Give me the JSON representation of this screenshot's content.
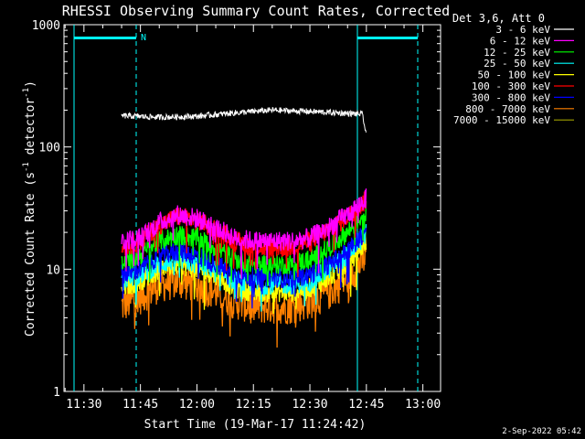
{
  "chart_data": {
    "type": "line",
    "title": "RHESSI Observing Summary Count Rates, Corrected",
    "xlabel": "Start Time (19-Mar-17 11:24:42)",
    "ylabel_main": "Corrected Count Rate (s",
    "ylabel_sup1": "-1",
    "ylabel_mid": " detector",
    "ylabel_sup2": "-1",
    "ylabel_end": ")",
    "yscale": "log",
    "ylim": [
      1,
      1000
    ],
    "xlim": [
      "11:24:42",
      "13:04:42"
    ],
    "x_ticks": [
      "11:30",
      "11:45",
      "12:00",
      "12:15",
      "12:30",
      "12:45",
      "13:00"
    ],
    "y_ticks": [
      "1",
      "10",
      "100",
      "1000"
    ],
    "legend_title": "Det 3,6, Att 0",
    "legend_location": "top-right outside plot",
    "annotation_N": "N",
    "series": [
      {
        "name": "3 - 6 keV",
        "color": "#ffffff",
        "x": [
          "11:40",
          "11:50",
          "12:00",
          "12:10",
          "12:20",
          "12:30",
          "12:40",
          "12:44",
          "12:45"
        ],
        "values": [
          180,
          175,
          178,
          190,
          200,
          195,
          188,
          185,
          120
        ]
      },
      {
        "name": "6 - 12 keV",
        "color": "#ff00ff",
        "x": [
          "11:40",
          "11:45",
          "11:50",
          "11:55",
          "12:00",
          "12:05",
          "12:10",
          "12:15",
          "12:20",
          "12:25",
          "12:30",
          "12:35",
          "12:40",
          "12:45"
        ],
        "values": [
          17,
          18,
          24,
          28,
          26,
          22,
          18,
          17,
          17,
          17,
          18,
          22,
          28,
          38
        ]
      },
      {
        "name": "12 - 25 keV",
        "color": "#00ff00",
        "x": [
          "11:40",
          "11:45",
          "11:50",
          "11:55",
          "12:00",
          "12:05",
          "12:10",
          "12:15",
          "12:20",
          "12:25",
          "12:30",
          "12:35",
          "12:40",
          "12:45"
        ],
        "values": [
          11,
          13,
          17,
          19,
          18,
          15,
          12,
          11,
          11,
          11,
          12,
          15,
          20,
          30
        ]
      },
      {
        "name": "25 - 50 keV",
        "color": "#00ffff",
        "x": [
          "11:40",
          "11:45",
          "11:50",
          "11:55",
          "12:00",
          "12:05",
          "12:10",
          "12:15",
          "12:20",
          "12:25",
          "12:30",
          "12:35",
          "12:40",
          "12:45"
        ],
        "values": [
          8,
          9,
          11,
          12,
          11,
          10,
          8,
          7.5,
          7.5,
          7.5,
          8,
          10,
          13,
          20
        ]
      },
      {
        "name": "50 - 100 keV",
        "color": "#ffff00",
        "x": [
          "11:40",
          "11:45",
          "11:50",
          "11:55",
          "12:00",
          "12:05",
          "12:10",
          "12:15",
          "12:20",
          "12:25",
          "12:30",
          "12:35",
          "12:40",
          "12:45"
        ],
        "values": [
          7,
          8,
          10,
          11,
          10,
          9,
          7,
          6.5,
          6.5,
          6.5,
          7,
          8.5,
          11,
          17
        ]
      },
      {
        "name": "100 - 300 keV",
        "color": "#ff0000",
        "x": [
          "11:40",
          "11:45",
          "11:50",
          "11:55",
          "12:00",
          "12:05",
          "12:10",
          "12:15",
          "12:20",
          "12:25",
          "12:30",
          "12:35",
          "12:40",
          "12:45"
        ],
        "values": [
          15,
          17,
          23,
          27,
          25,
          21,
          17,
          15,
          15,
          15,
          17,
          21,
          27,
          37
        ]
      },
      {
        "name": "300 - 800 keV",
        "color": "#0000ff",
        "x": [
          "11:40",
          "11:45",
          "11:50",
          "11:55",
          "12:00",
          "12:05",
          "12:10",
          "12:15",
          "12:20",
          "12:25",
          "12:30",
          "12:35",
          "12:40",
          "12:45"
        ],
        "values": [
          9,
          10,
          13,
          14,
          13,
          11,
          9,
          8.5,
          8.5,
          8.5,
          9,
          11,
          14,
          21
        ]
      },
      {
        "name": "800 - 7000 keV",
        "color": "#ff8000",
        "x": [
          "11:40",
          "11:45",
          "11:50",
          "11:55",
          "12:00",
          "12:05",
          "12:10",
          "12:15",
          "12:20",
          "12:25",
          "12:30",
          "12:35",
          "12:40",
          "12:45"
        ],
        "values": [
          5,
          6,
          7.5,
          8,
          7.5,
          6.5,
          5.5,
          5,
          5,
          5,
          5.5,
          6.5,
          8.5,
          13
        ]
      },
      {
        "name": "7000 - 15000 keV",
        "color": "#a0a000",
        "x": [],
        "values": []
      }
    ]
  },
  "footer": {
    "date": "2-Sep-2022 05:42"
  }
}
